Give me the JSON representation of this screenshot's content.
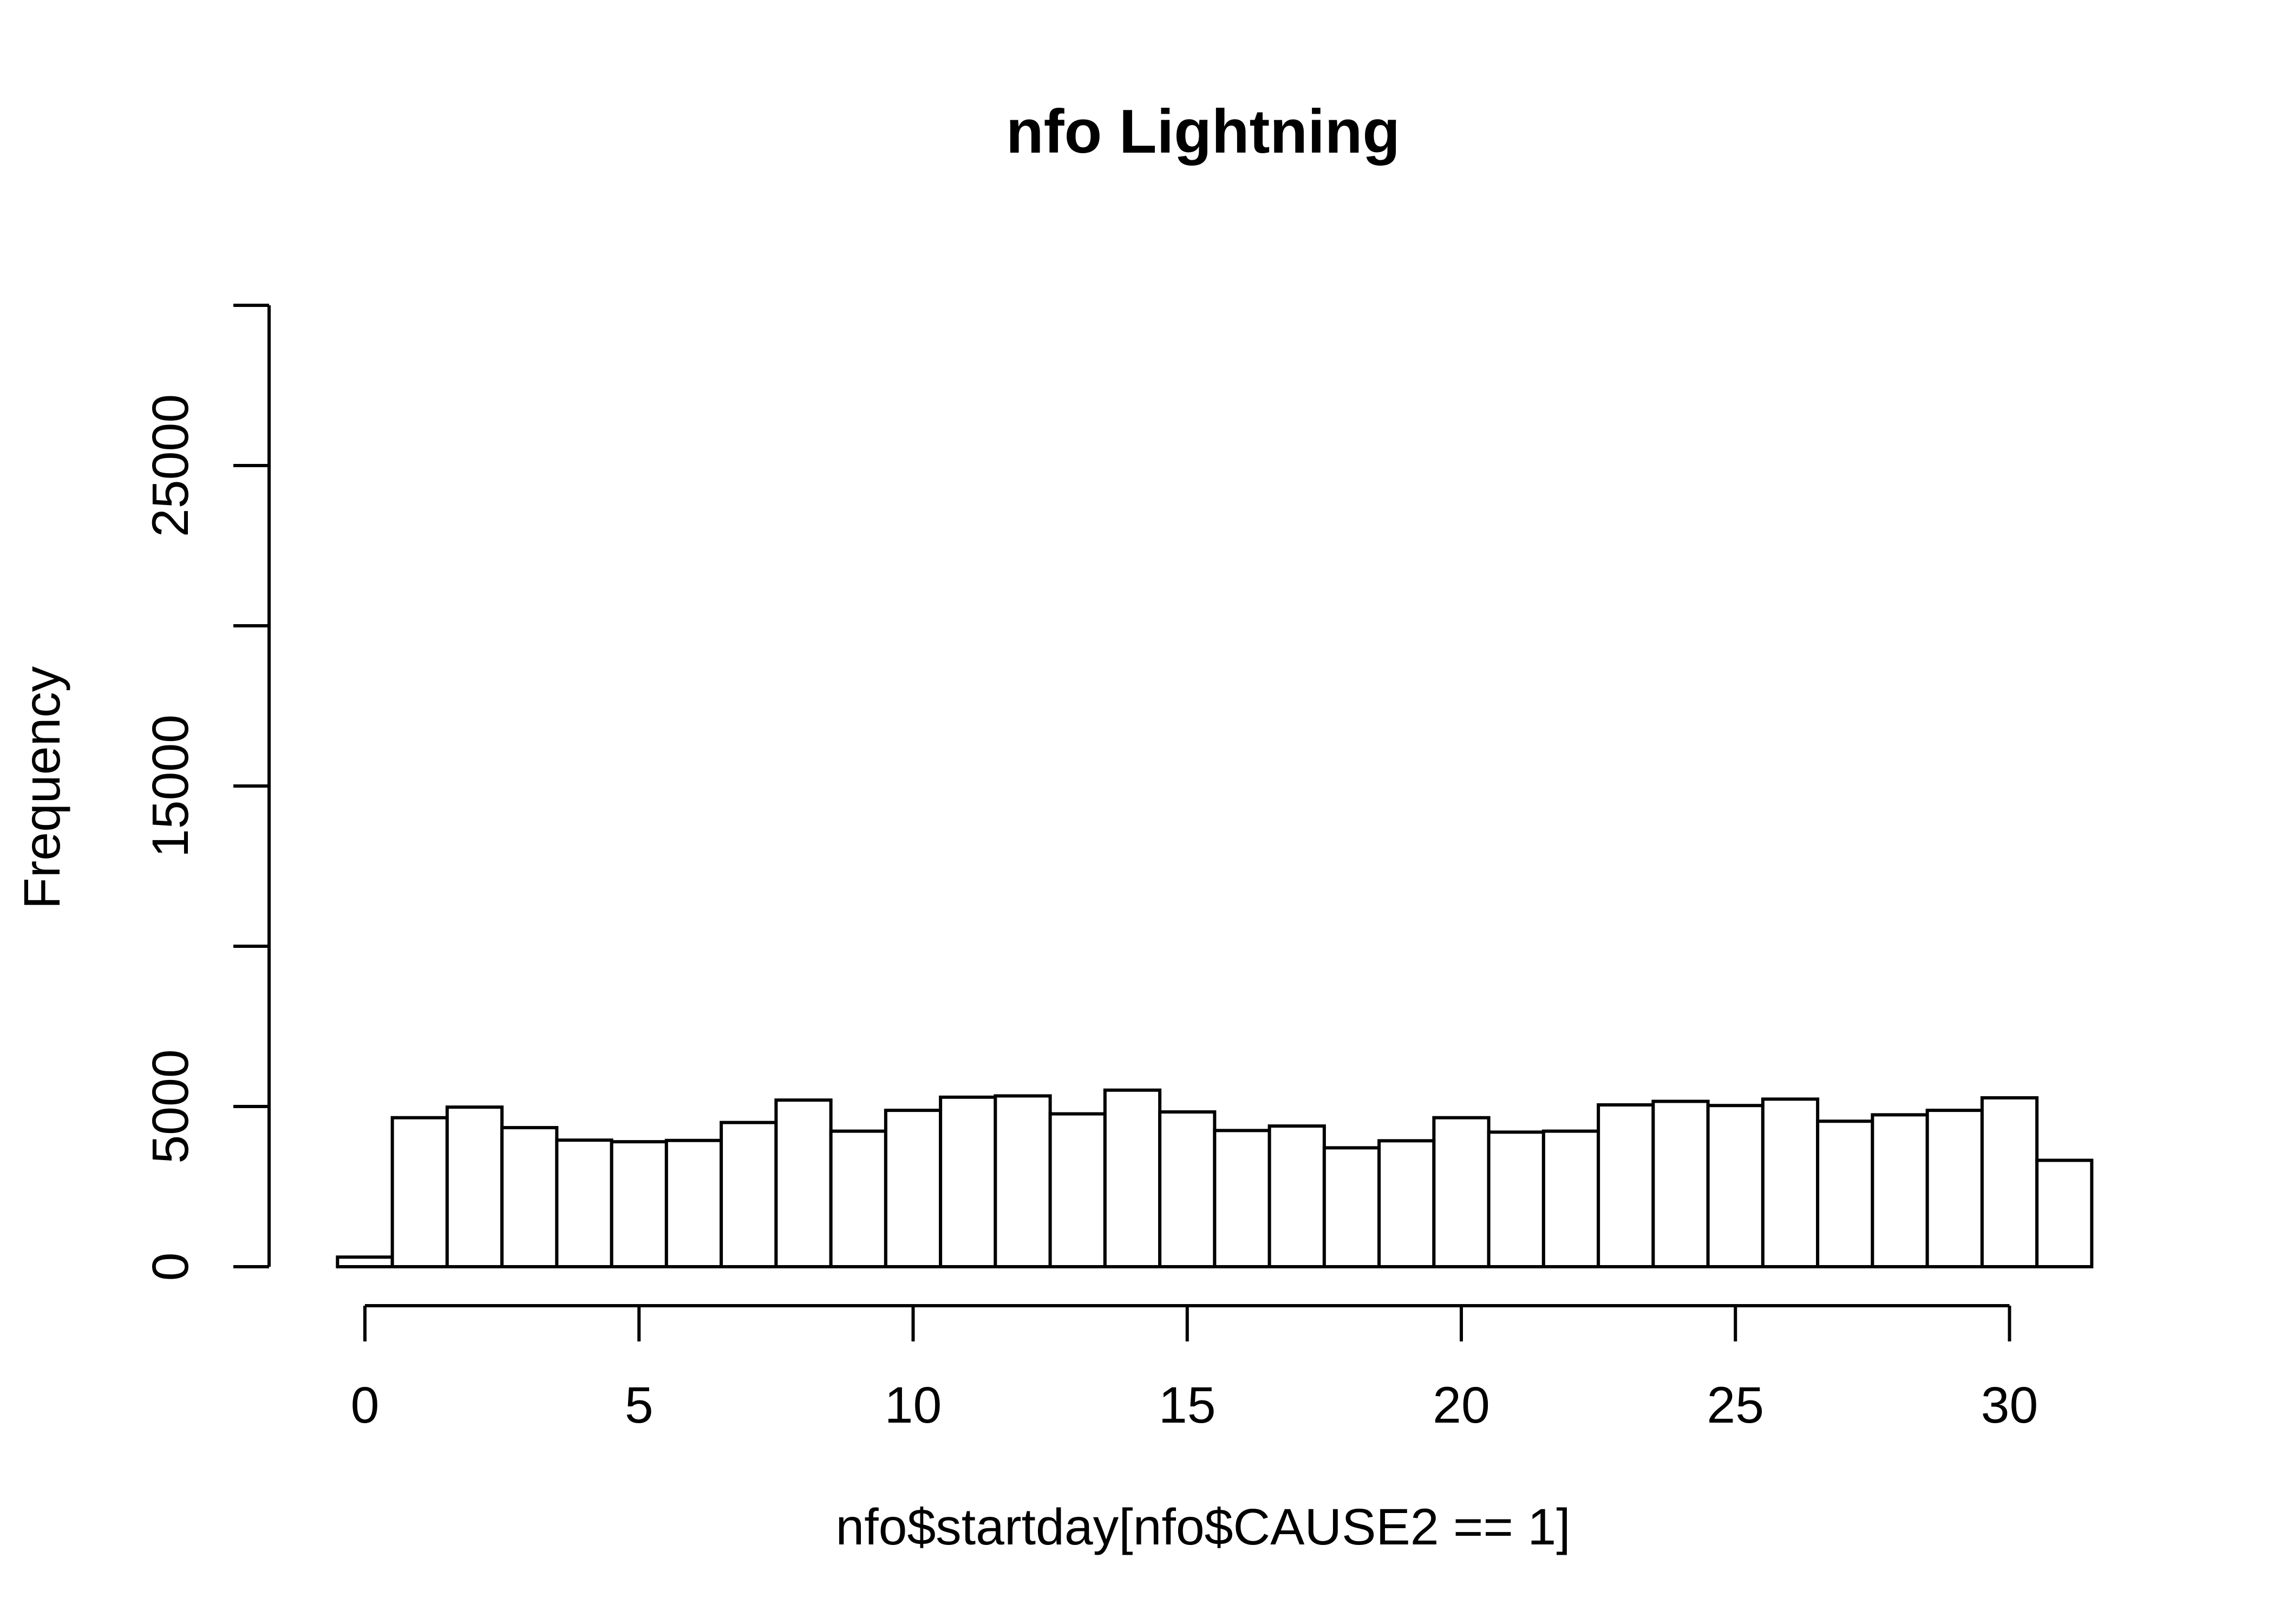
{
  "chart_data": {
    "type": "bar",
    "title": "nfo Lightning",
    "xlabel": "nfo$startday[nfo$CAUSE2 == 1]",
    "ylabel": "Frequency",
    "bin_edges": [
      -0.5,
      0.5,
      1.5,
      2.5,
      3.5,
      4.5,
      5.5,
      6.5,
      7.5,
      8.5,
      9.5,
      10.5,
      11.5,
      12.5,
      13.5,
      14.5,
      15.5,
      16.5,
      17.5,
      18.5,
      19.5,
      20.5,
      21.5,
      22.5,
      23.5,
      24.5,
      25.5,
      26.5,
      27.5,
      28.5,
      29.5,
      30.5,
      31.5
    ],
    "values": [
      300,
      4650,
      4980,
      4340,
      3950,
      3900,
      3940,
      4500,
      5200,
      4230,
      4880,
      5290,
      5330,
      4770,
      5510,
      4830,
      4250,
      4390,
      3710,
      3930,
      4650,
      4200,
      4230,
      5050,
      5160,
      5030,
      5230,
      4540,
      4740,
      4880,
      5270,
      3320
    ],
    "xlim": [
      -0.5,
      31.5
    ],
    "ylim": [
      0,
      30000
    ],
    "x_ticks": [
      0,
      5,
      10,
      15,
      20,
      25,
      30
    ],
    "y_ticks": [
      0,
      5000,
      10000,
      15000,
      20000,
      25000,
      30000
    ],
    "y_tick_labels": [
      "0",
      "5000",
      "",
      "15000",
      "",
      "25000",
      ""
    ],
    "x_tick_labels": [
      "0",
      "5",
      "10",
      "15",
      "20",
      "25",
      "30"
    ],
    "grid": false,
    "legend": "none"
  }
}
